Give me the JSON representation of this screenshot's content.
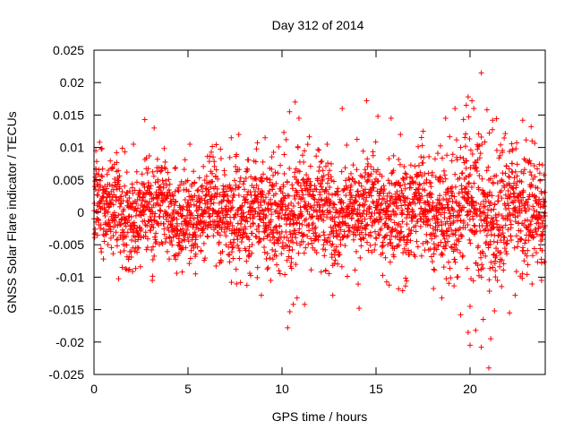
{
  "chart_data": {
    "type": "scatter",
    "title": "Day 312 of 2014",
    "xlabel": "GPS time / hours",
    "ylabel": "GNSS Solar Flare indicator / TECUs",
    "xlim": [
      0,
      24
    ],
    "ylim": [
      -0.025,
      0.025
    ],
    "xticks": [
      0,
      5,
      10,
      15,
      20
    ],
    "xtick_labels": [
      "0",
      "5",
      "10",
      "15",
      "20"
    ],
    "yticks": [
      -0.025,
      -0.02,
      -0.015,
      -0.01,
      -0.005,
      0,
      0.005,
      0.01,
      0.015,
      0.02,
      0.025
    ],
    "ytick_labels": [
      "-0.025",
      "-0.02",
      "-0.015",
      "-0.01",
      "-0.005",
      "0",
      "0.005",
      "0.01",
      "0.015",
      "0.02",
      "0.025"
    ],
    "grid": false,
    "legend": "none",
    "marker": "+",
    "marker_color": "#ff0000",
    "axis_color": "#000000",
    "noise_envelope": {
      "hours": [
        0,
        2,
        4,
        6,
        8,
        10,
        12,
        14,
        16,
        18,
        19,
        20,
        21,
        22,
        23,
        24
      ],
      "typical_amplitude": [
        0.0035,
        0.0038,
        0.0035,
        0.0036,
        0.004,
        0.0042,
        0.0042,
        0.004,
        0.0042,
        0.0042,
        0.0048,
        0.0056,
        0.0058,
        0.005,
        0.0044,
        0.0042
      ]
    },
    "series": [
      {
        "values": [
          [
            2.7,
            0.0143
          ],
          [
            3.2,
            0.013
          ],
          [
            10.4,
            0.0155
          ],
          [
            10.7,
            0.017
          ],
          [
            10.9,
            0.0145
          ],
          [
            13.2,
            0.016
          ],
          [
            14.5,
            0.0172
          ],
          [
            15.1,
            0.0148
          ],
          [
            15.8,
            0.0145
          ],
          [
            18.7,
            0.0145
          ],
          [
            19.2,
            0.016
          ],
          [
            19.8,
            0.0165
          ],
          [
            19.9,
            0.0178
          ],
          [
            20.1,
            0.0172
          ],
          [
            20.2,
            0.016
          ],
          [
            20.6,
            0.0215
          ],
          [
            20.9,
            0.0158
          ],
          [
            21.2,
            0.0142
          ],
          [
            22.8,
            0.0142
          ],
          [
            23.3,
            0.011
          ],
          [
            0.1,
            0.0095
          ],
          [
            0.3,
            0.0108
          ],
          [
            1.2,
            0.0092
          ],
          [
            2.1,
            0.0105
          ],
          [
            5.1,
            0.0105
          ],
          [
            7.3,
            0.0115
          ],
          [
            7.7,
            0.012
          ],
          [
            9.1,
            0.0115
          ],
          [
            12.4,
            0.0105
          ],
          [
            16.3,
            0.012
          ],
          [
            0.5,
            -0.0072
          ],
          [
            1.5,
            -0.0085
          ],
          [
            3.1,
            -0.0105
          ],
          [
            5.4,
            -0.0095
          ],
          [
            8.9,
            -0.0128
          ],
          [
            9.4,
            -0.0105
          ],
          [
            10.3,
            -0.0178
          ],
          [
            10.6,
            -0.0142
          ],
          [
            10.8,
            -0.0132
          ],
          [
            11.2,
            -0.0142
          ],
          [
            12.7,
            -0.0128
          ],
          [
            14.1,
            -0.0148
          ],
          [
            16.2,
            -0.0118
          ],
          [
            18.5,
            -0.0132
          ],
          [
            19.5,
            -0.0158
          ],
          [
            19.9,
            -0.0185
          ],
          [
            20.0,
            -0.0205
          ],
          [
            20.0,
            -0.0145
          ],
          [
            20.3,
            -0.0182
          ],
          [
            20.6,
            -0.0208
          ],
          [
            20.7,
            -0.0165
          ],
          [
            21.0,
            -0.024
          ],
          [
            21.1,
            -0.0195
          ],
          [
            21.3,
            -0.0152
          ],
          [
            22.1,
            -0.0155
          ],
          [
            22.4,
            -0.0128
          ],
          [
            23.8,
            -0.0105
          ]
        ]
      }
    ]
  }
}
